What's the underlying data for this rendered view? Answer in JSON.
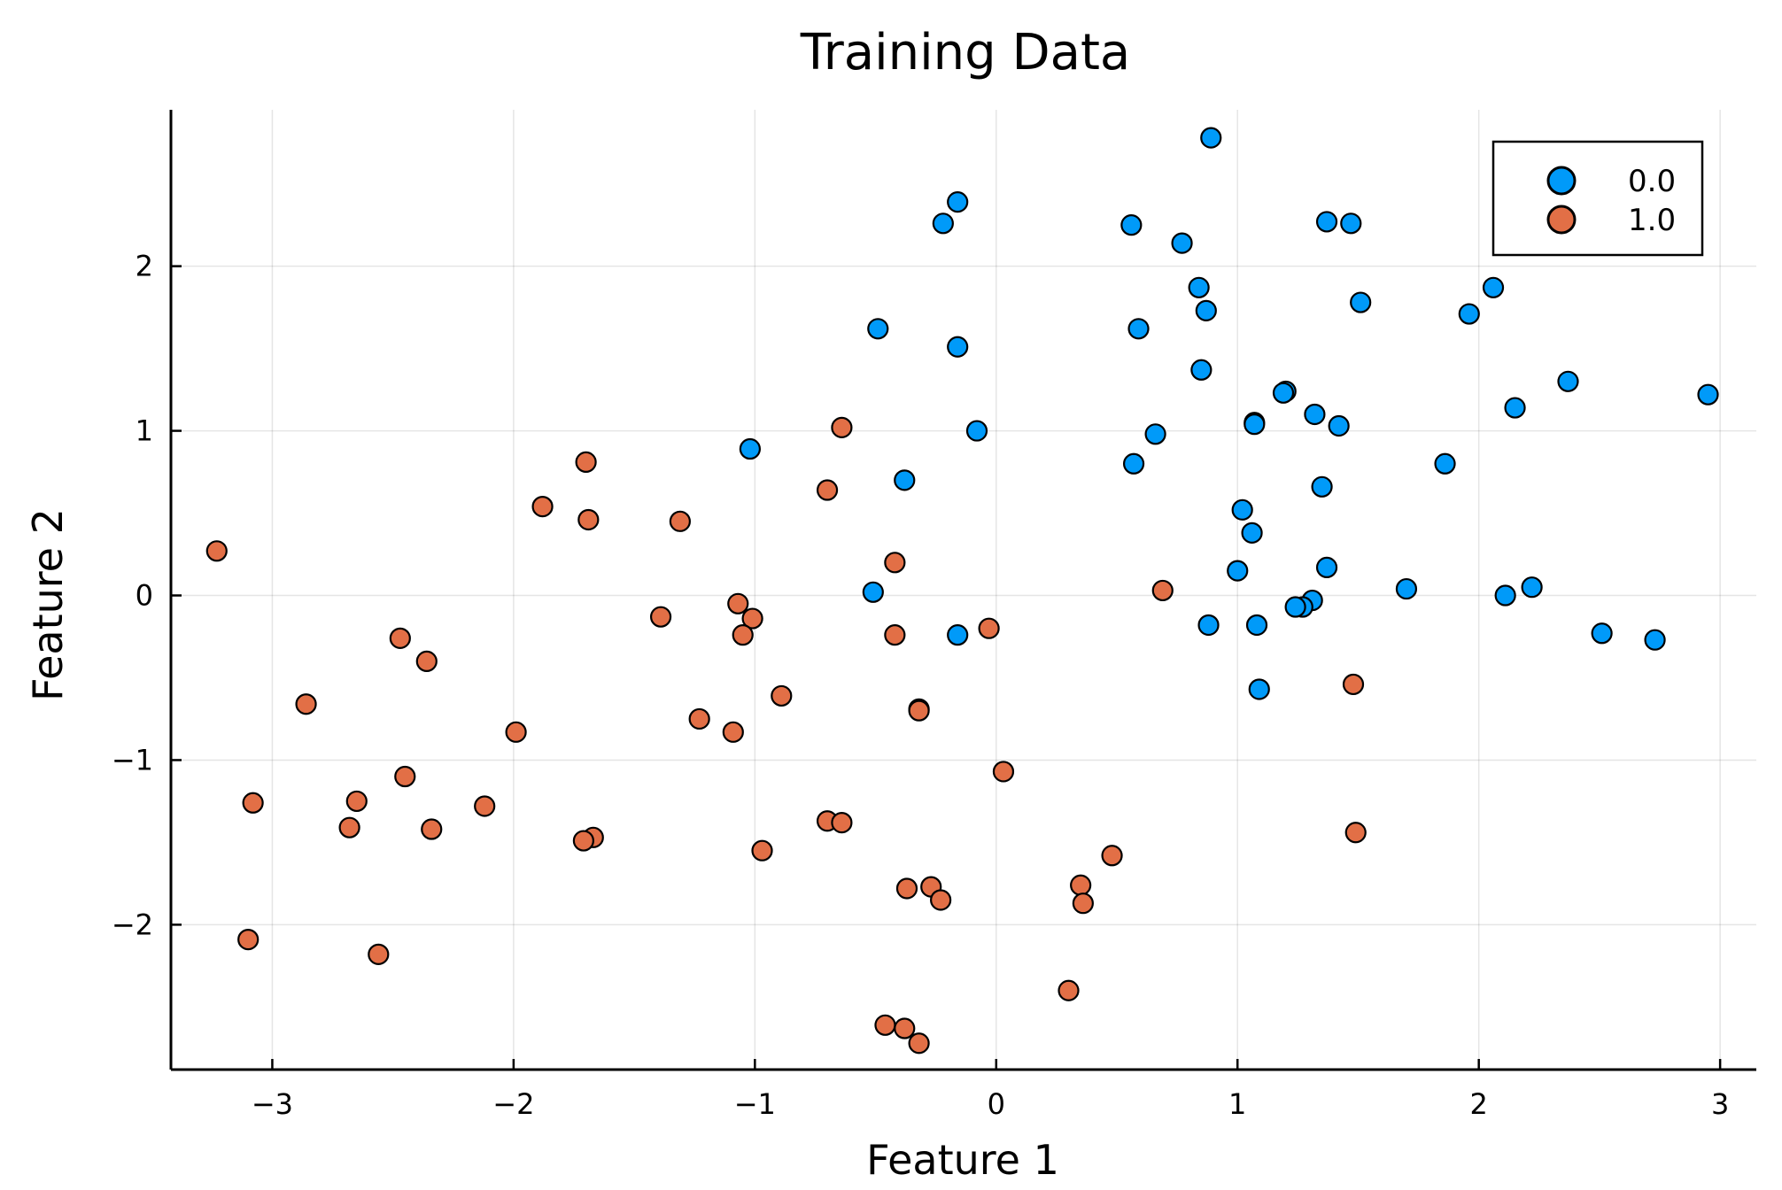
{
  "chart_data": {
    "type": "scatter",
    "title": "Training Data",
    "xlabel": "Feature 1",
    "ylabel": "Feature 2",
    "xlim": [
      -3.42,
      3.15
    ],
    "ylim": [
      -2.88,
      2.95
    ],
    "xticks": [
      -3,
      -2,
      -1,
      0,
      1,
      2,
      3
    ],
    "yticks": [
      -2,
      -1,
      0,
      1,
      2
    ],
    "xtick_labels": [
      "−3",
      "−2",
      "−1",
      "0",
      "1",
      "2",
      "3"
    ],
    "ytick_labels": [
      "−2",
      "−1",
      "0",
      "1",
      "2"
    ],
    "grid": true,
    "legend_position": "top-right",
    "series": [
      {
        "name": "0.0",
        "color": "#009af9",
        "points": [
          [
            0.89,
            2.78
          ],
          [
            -0.16,
            2.39
          ],
          [
            -0.22,
            2.26
          ],
          [
            0.56,
            2.25
          ],
          [
            1.37,
            2.27
          ],
          [
            1.47,
            2.26
          ],
          [
            0.77,
            2.14
          ],
          [
            0.84,
            1.87
          ],
          [
            2.06,
            1.87
          ],
          [
            1.51,
            1.78
          ],
          [
            0.87,
            1.73
          ],
          [
            1.96,
            1.71
          ],
          [
            -0.49,
            1.62
          ],
          [
            0.59,
            1.62
          ],
          [
            -0.16,
            1.51
          ],
          [
            0.85,
            1.37
          ],
          [
            2.37,
            1.3
          ],
          [
            1.2,
            1.24
          ],
          [
            1.19,
            1.23
          ],
          [
            2.95,
            1.22
          ],
          [
            2.15,
            1.14
          ],
          [
            1.32,
            1.1
          ],
          [
            1.07,
            1.05
          ],
          [
            1.07,
            1.04
          ],
          [
            1.42,
            1.03
          ],
          [
            -0.08,
            1.0
          ],
          [
            0.66,
            0.98
          ],
          [
            -1.02,
            0.89
          ],
          [
            0.57,
            0.8
          ],
          [
            1.86,
            0.8
          ],
          [
            -0.38,
            0.7
          ],
          [
            1.35,
            0.66
          ],
          [
            1.02,
            0.52
          ],
          [
            1.06,
            0.38
          ],
          [
            1.37,
            0.17
          ],
          [
            1.0,
            0.15
          ],
          [
            1.7,
            0.04
          ],
          [
            2.22,
            0.05
          ],
          [
            -0.51,
            0.02
          ],
          [
            2.11,
            0.0
          ],
          [
            1.31,
            -0.03
          ],
          [
            1.27,
            -0.07
          ],
          [
            1.24,
            -0.07
          ],
          [
            0.88,
            -0.18
          ],
          [
            1.08,
            -0.18
          ],
          [
            -0.16,
            -0.24
          ],
          [
            2.51,
            -0.23
          ],
          [
            2.73,
            -0.27
          ],
          [
            1.09,
            -0.57
          ],
          [
            -0.32,
            -0.69
          ]
        ]
      },
      {
        "name": "1.0",
        "color": "#e26f46",
        "points": [
          [
            -0.64,
            1.02
          ],
          [
            -1.7,
            0.81
          ],
          [
            -0.7,
            0.64
          ],
          [
            -1.88,
            0.54
          ],
          [
            -1.69,
            0.46
          ],
          [
            -1.31,
            0.45
          ],
          [
            -3.23,
            0.27
          ],
          [
            -0.42,
            0.2
          ],
          [
            0.69,
            0.03
          ],
          [
            -1.07,
            -0.05
          ],
          [
            -1.39,
            -0.13
          ],
          [
            -1.01,
            -0.14
          ],
          [
            -0.03,
            -0.2
          ],
          [
            -1.05,
            -0.24
          ],
          [
            -0.42,
            -0.24
          ],
          [
            -2.47,
            -0.26
          ],
          [
            -2.36,
            -0.4
          ],
          [
            1.48,
            -0.54
          ],
          [
            -0.89,
            -0.61
          ],
          [
            -2.86,
            -0.66
          ],
          [
            -0.32,
            -0.7
          ],
          [
            -1.23,
            -0.75
          ],
          [
            -1.99,
            -0.83
          ],
          [
            -1.09,
            -0.83
          ],
          [
            0.03,
            -1.07
          ],
          [
            -2.45,
            -1.1
          ],
          [
            -2.65,
            -1.25
          ],
          [
            -3.08,
            -1.26
          ],
          [
            -2.12,
            -1.28
          ],
          [
            -0.7,
            -1.37
          ],
          [
            -0.64,
            -1.38
          ],
          [
            -2.68,
            -1.41
          ],
          [
            -2.34,
            -1.42
          ],
          [
            1.49,
            -1.44
          ],
          [
            -1.67,
            -1.47
          ],
          [
            -1.71,
            -1.49
          ],
          [
            -0.97,
            -1.55
          ],
          [
            0.48,
            -1.58
          ],
          [
            0.35,
            -1.76
          ],
          [
            -0.27,
            -1.77
          ],
          [
            -0.37,
            -1.78
          ],
          [
            -0.23,
            -1.85
          ],
          [
            0.36,
            -1.87
          ],
          [
            -3.1,
            -2.09
          ],
          [
            -2.56,
            -2.18
          ],
          [
            0.3,
            -2.4
          ],
          [
            -0.46,
            -2.61
          ],
          [
            -0.38,
            -2.63
          ],
          [
            -0.32,
            -2.72
          ]
        ]
      }
    ]
  }
}
